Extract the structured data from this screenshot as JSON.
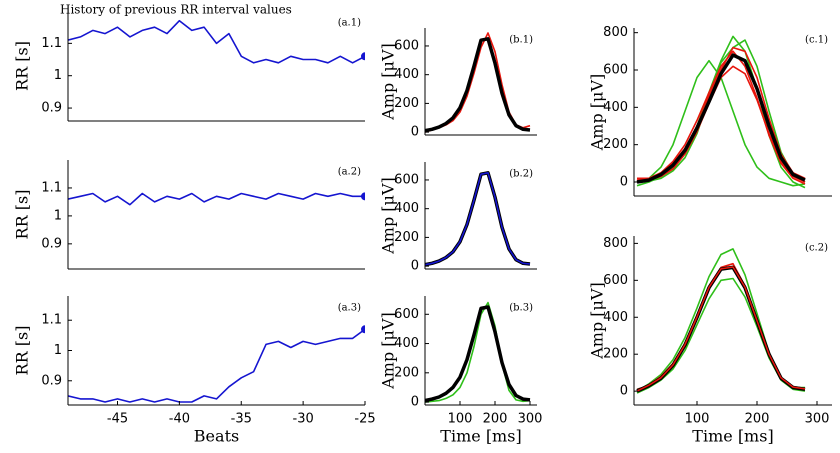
{
  "chart_data": [
    {
      "type": "line",
      "title": "History of previous RR interval values",
      "annotation": "(a.1)",
      "y_label": "RR [s]",
      "x": [
        -49,
        -48,
        -47,
        -46,
        -45,
        -44,
        -43,
        -42,
        -41,
        -40,
        -39,
        -38,
        -37,
        -36,
        -35,
        -34,
        -33,
        -32,
        -31,
        -30,
        -29,
        -28,
        -27,
        -26,
        -25
      ],
      "series": [
        {
          "color": "#1515d0",
          "values": [
            1.11,
            1.12,
            1.14,
            1.13,
            1.15,
            1.12,
            1.14,
            1.15,
            1.13,
            1.17,
            1.14,
            1.15,
            1.1,
            1.13,
            1.06,
            1.04,
            1.05,
            1.04,
            1.06,
            1.05,
            1.05,
            1.04,
            1.06,
            1.04,
            1.06
          ]
        }
      ],
      "endpoint_marker": true,
      "xlim": [
        -49,
        -25
      ],
      "ylim": [
        0.86,
        1.2
      ],
      "yticks": [
        0.9,
        1,
        1.1
      ]
    },
    {
      "type": "line",
      "annotation": "(a.2)",
      "y_label": "RR [s]",
      "x": [
        -49,
        -48,
        -47,
        -46,
        -45,
        -44,
        -43,
        -42,
        -41,
        -40,
        -39,
        -38,
        -37,
        -36,
        -35,
        -34,
        -33,
        -32,
        -31,
        -30,
        -29,
        -28,
        -27,
        -26,
        -25
      ],
      "series": [
        {
          "color": "#1515d0",
          "values": [
            1.06,
            1.07,
            1.08,
            1.05,
            1.07,
            1.04,
            1.08,
            1.05,
            1.07,
            1.06,
            1.08,
            1.05,
            1.07,
            1.06,
            1.08,
            1.07,
            1.06,
            1.08,
            1.07,
            1.06,
            1.08,
            1.07,
            1.08,
            1.07,
            1.07
          ]
        }
      ],
      "endpoint_marker": true,
      "xlim": [
        -49,
        -25
      ],
      "ylim": [
        0.81,
        1.2
      ],
      "yticks": [
        0.9,
        1,
        1.1
      ]
    },
    {
      "type": "line",
      "annotation": "(a.3)",
      "y_label": "RR [s]",
      "x_label": "Beats",
      "x": [
        -49,
        -48,
        -47,
        -46,
        -45,
        -44,
        -43,
        -42,
        -41,
        -40,
        -39,
        -38,
        -37,
        -36,
        -35,
        -34,
        -33,
        -32,
        -31,
        -30,
        -29,
        -28,
        -27,
        -26,
        -25
      ],
      "series": [
        {
          "color": "#1515d0",
          "values": [
            0.85,
            0.84,
            0.84,
            0.83,
            0.84,
            0.83,
            0.84,
            0.83,
            0.84,
            0.83,
            0.83,
            0.85,
            0.84,
            0.88,
            0.91,
            0.93,
            1.02,
            1.03,
            1.01,
            1.03,
            1.02,
            1.03,
            1.04,
            1.04,
            1.07
          ]
        }
      ],
      "endpoint_marker": true,
      "xlim": [
        -49,
        -25
      ],
      "ylim": [
        0.82,
        1.18
      ],
      "yticks": [
        0.9,
        1,
        1.1
      ],
      "xticks": [
        -45,
        -40,
        -35,
        -30,
        -25
      ]
    },
    {
      "type": "line",
      "annotation": "(b.1)",
      "y_label": "Amp [μV]",
      "x": [
        0,
        20,
        40,
        60,
        80,
        100,
        120,
        140,
        160,
        180,
        200,
        220,
        240,
        260,
        280,
        300
      ],
      "series": [
        {
          "color": "#e8150c",
          "values": [
            0,
            15,
            30,
            50,
            80,
            140,
            250,
            410,
            590,
            690,
            560,
            330,
            140,
            50,
            30,
            45
          ]
        },
        {
          "color": "#000000",
          "width": 3.5,
          "values": [
            10,
            20,
            35,
            60,
            100,
            170,
            290,
            460,
            640,
            650,
            480,
            270,
            120,
            45,
            20,
            15
          ]
        }
      ],
      "xlim": [
        0,
        320
      ],
      "ylim": [
        -20,
        725
      ],
      "yticks": [
        0,
        200,
        400,
        600
      ]
    },
    {
      "type": "line",
      "annotation": "(b.2)",
      "y_label": "Amp [μV]",
      "x": [
        0,
        20,
        40,
        60,
        80,
        100,
        120,
        140,
        160,
        180,
        200,
        220,
        240,
        260,
        280,
        300
      ],
      "series": [
        {
          "color": "#000000",
          "width": 3.5,
          "values": [
            10,
            20,
            35,
            60,
            100,
            170,
            290,
            460,
            640,
            650,
            480,
            270,
            120,
            45,
            20,
            15
          ]
        },
        {
          "color": "#1515d0",
          "values": [
            10,
            20,
            35,
            60,
            100,
            170,
            290,
            460,
            640,
            650,
            480,
            270,
            120,
            45,
            20,
            15
          ]
        }
      ],
      "xlim": [
        0,
        320
      ],
      "ylim": [
        -20,
        725
      ],
      "yticks": [
        0,
        200,
        400,
        600
      ]
    },
    {
      "type": "line",
      "annotation": "(b.3)",
      "y_label": "Amp [μV]",
      "x_label": "Time [ms]",
      "x": [
        0,
        20,
        40,
        60,
        80,
        100,
        120,
        140,
        160,
        180,
        200,
        220,
        240,
        260,
        280,
        300
      ],
      "series": [
        {
          "color": "#2fbf1a",
          "values": [
            0,
            5,
            10,
            25,
            50,
            100,
            200,
            380,
            600,
            680,
            520,
            260,
            80,
            15,
            5,
            10
          ]
        },
        {
          "color": "#000000",
          "width": 3.5,
          "values": [
            10,
            20,
            35,
            60,
            100,
            170,
            290,
            460,
            640,
            650,
            480,
            270,
            120,
            45,
            20,
            15
          ]
        }
      ],
      "xlim": [
        0,
        320
      ],
      "ylim": [
        -20,
        725
      ],
      "yticks": [
        0,
        200,
        400,
        600
      ],
      "xticks": [
        100,
        200,
        300
      ]
    },
    {
      "type": "line",
      "annotation": "(c.1)",
      "y_label": "Amp [μV]",
      "x": [
        0,
        20,
        40,
        60,
        80,
        100,
        120,
        140,
        160,
        180,
        200,
        220,
        240,
        260,
        280
      ],
      "series": [
        {
          "color": "#2fbf1a",
          "values": [
            0,
            20,
            80,
            200,
            380,
            560,
            650,
            560,
            380,
            200,
            80,
            20,
            0,
            -20,
            -10
          ]
        },
        {
          "color": "#2fbf1a",
          "values": [
            -20,
            0,
            30,
            80,
            170,
            300,
            480,
            650,
            780,
            700,
            500,
            250,
            80,
            0,
            -30
          ]
        },
        {
          "color": "#2fbf1a",
          "values": [
            0,
            5,
            20,
            60,
            130,
            260,
            450,
            640,
            720,
            760,
            620,
            380,
            160,
            40,
            0
          ]
        },
        {
          "color": "#e8150c",
          "values": [
            10,
            20,
            50,
            110,
            200,
            330,
            480,
            620,
            700,
            620,
            450,
            250,
            100,
            20,
            -10
          ]
        },
        {
          "color": "#e8150c",
          "values": [
            0,
            10,
            30,
            70,
            150,
            270,
            420,
            560,
            620,
            580,
            440,
            260,
            110,
            30,
            0
          ]
        },
        {
          "color": "#e8150c",
          "values": [
            20,
            20,
            50,
            100,
            180,
            300,
            460,
            600,
            720,
            700,
            560,
            340,
            150,
            50,
            20
          ]
        },
        {
          "color": "#000000",
          "width": 3.5,
          "values": [
            0,
            10,
            40,
            90,
            170,
            290,
            430,
            580,
            680,
            650,
            500,
            300,
            130,
            40,
            10
          ]
        }
      ],
      "xlim": [
        -5,
        325
      ],
      "ylim": [
        -75,
        825
      ],
      "yticks": [
        0,
        200,
        400,
        600,
        800
      ]
    },
    {
      "type": "line",
      "annotation": "(c.2)",
      "y_label": "Amp [μV]",
      "x_label": "Time [ms]",
      "x": [
        0,
        20,
        40,
        60,
        80,
        100,
        120,
        140,
        160,
        180,
        200,
        220,
        240,
        260,
        280
      ],
      "series": [
        {
          "color": "#2fbf1a",
          "values": [
            0,
            40,
            90,
            170,
            290,
            450,
            620,
            740,
            770,
            630,
            420,
            210,
            70,
            20,
            20
          ]
        },
        {
          "color": "#2fbf1a",
          "values": [
            -10,
            20,
            60,
            120,
            220,
            360,
            500,
            600,
            610,
            510,
            350,
            180,
            60,
            10,
            0
          ]
        },
        {
          "color": "#e8150c",
          "values": [
            0,
            35,
            80,
            150,
            260,
            410,
            570,
            670,
            690,
            570,
            390,
            200,
            70,
            20,
            10
          ]
        },
        {
          "color": "#8b3a1a",
          "values": [
            10,
            30,
            75,
            145,
            255,
            405,
            565,
            665,
            675,
            565,
            385,
            200,
            75,
            25,
            15
          ]
        },
        {
          "color": "#000000",
          "width": 3.5,
          "values": [
            0,
            30,
            70,
            140,
            250,
            400,
            560,
            660,
            670,
            560,
            380,
            200,
            70,
            20,
            10
          ]
        },
        {
          "color": "#e8150c",
          "width": 1.5,
          "values": [
            0,
            32,
            72,
            142,
            252,
            402,
            562,
            662,
            672,
            562,
            382,
            200,
            72,
            22,
            12
          ]
        }
      ],
      "xlim": [
        -5,
        325
      ],
      "ylim": [
        -75,
        840
      ],
      "yticks": [
        0,
        200,
        400,
        600,
        800
      ],
      "xticks": [
        100,
        200,
        300
      ]
    }
  ]
}
